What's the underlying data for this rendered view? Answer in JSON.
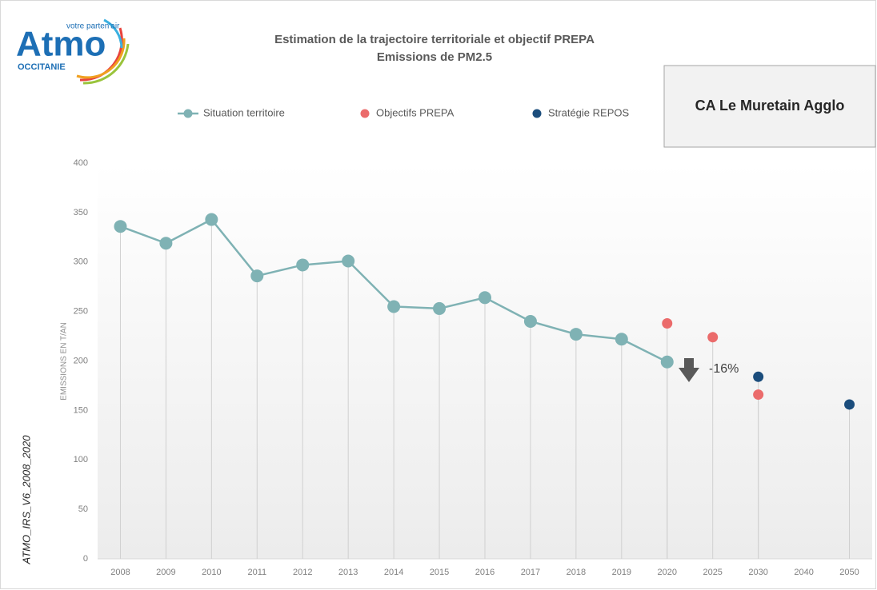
{
  "logo": {
    "name": "Atmo",
    "tagline": "votre parten'air",
    "region": "OCCITANIE"
  },
  "side_note": "ATMO_IRS_V6_2008_2020",
  "territory": "CA Le Muretain Agglo",
  "chart_data": {
    "type": "line",
    "title": "Estimation de la trajectoire territoriale  et objectif PREPA",
    "subtitle": "Emissions de PM2.5",
    "y_label": "EMISSIONS  EN T/AN",
    "categories": [
      "2008",
      "2009",
      "2010",
      "2011",
      "2012",
      "2013",
      "2014",
      "2015",
      "2016",
      "2017",
      "2018",
      "2019",
      "2020",
      "2025",
      "2030",
      "2040",
      "2050"
    ],
    "series": [
      {
        "name": "Situation territoire",
        "color": "#7fb2b4",
        "style": "line",
        "values": [
          336,
          319,
          343,
          286,
          297,
          301,
          255,
          253,
          264,
          240,
          227,
          222,
          199,
          null,
          null,
          null,
          null
        ]
      },
      {
        "name": "Objectifs PREPA",
        "color": "#eb6b6b",
        "style": "marker",
        "values": [
          null,
          null,
          null,
          null,
          null,
          null,
          null,
          null,
          null,
          null,
          null,
          null,
          238,
          224,
          166,
          null,
          null
        ]
      },
      {
        "name": "Stratégie REPOS",
        "color": "#1b4d7c",
        "style": "marker",
        "values": [
          null,
          null,
          null,
          null,
          null,
          null,
          null,
          null,
          null,
          null,
          null,
          null,
          null,
          null,
          184,
          null,
          156
        ]
      }
    ],
    "ylim": [
      0,
      400
    ],
    "yticks": [
      0,
      50,
      100,
      150,
      200,
      250,
      300,
      350,
      400
    ],
    "annotation": "-16%",
    "legend": "top"
  }
}
